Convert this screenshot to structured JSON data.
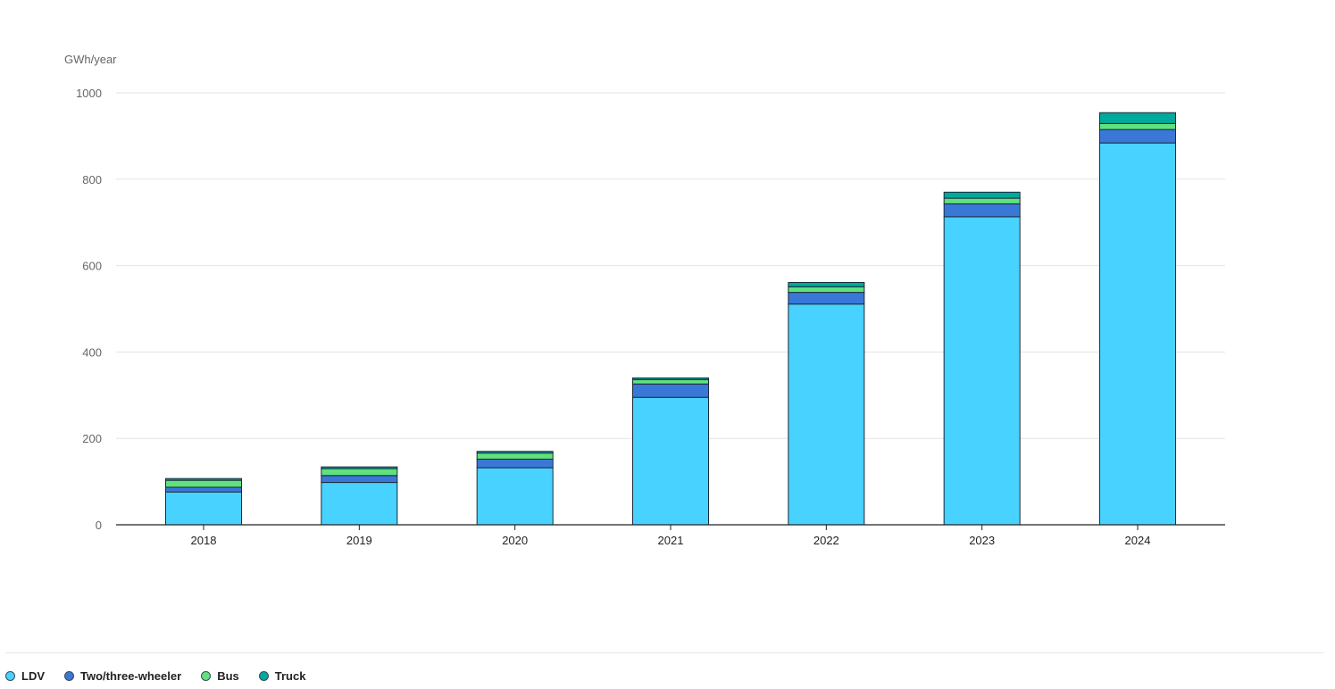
{
  "chart_data": {
    "type": "bar",
    "stacked": true,
    "ylabel": "GWh/year",
    "ylim": [
      0,
      1000
    ],
    "yticks": [
      0,
      200,
      400,
      600,
      800,
      1000
    ],
    "grid": true,
    "legend_position": "bottom-left",
    "categories": [
      "2018",
      "2019",
      "2020",
      "2021",
      "2022",
      "2023",
      "2024"
    ],
    "series": [
      {
        "name": "LDV",
        "color": "#48d2ff",
        "values": [
          76,
          98,
          132,
          295,
          511,
          713,
          884
        ]
      },
      {
        "name": "Two/three-wheeler",
        "color": "#3a78d8",
        "values": [
          11,
          16,
          20,
          31,
          27,
          30,
          31
        ]
      },
      {
        "name": "Bus",
        "color": "#5fe27e",
        "values": [
          16,
          16,
          14,
          10,
          13,
          13,
          14
        ]
      },
      {
        "name": "Truck",
        "color": "#00a99d",
        "values": [
          4,
          4,
          4,
          4,
          10,
          14,
          25
        ]
      }
    ]
  }
}
